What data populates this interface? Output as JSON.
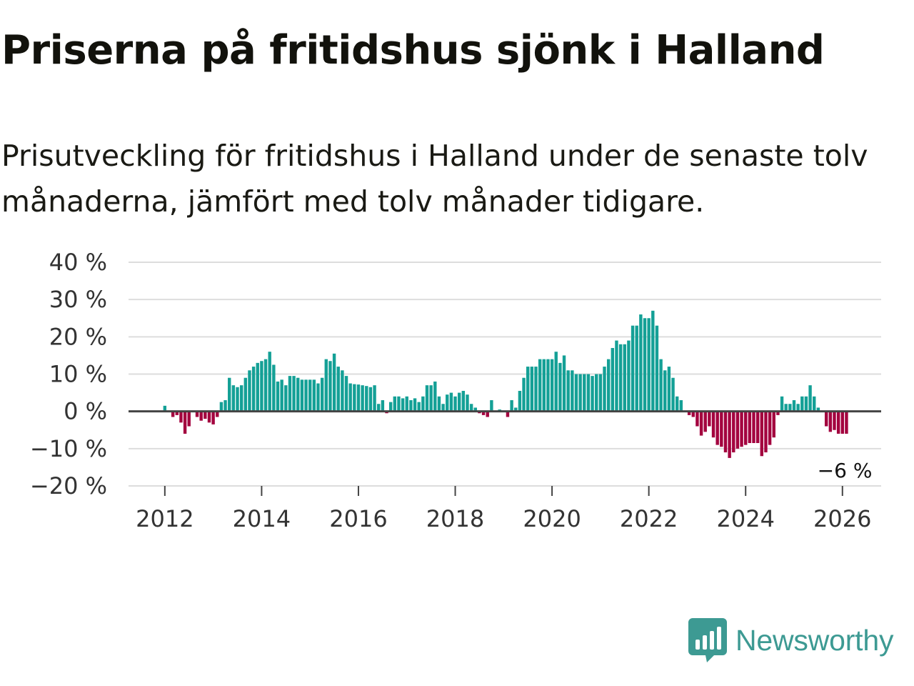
{
  "title": "Priserna på fritidshus sjönk i Halland",
  "subtitle": "Prisutveckling för fritidshus i Halland under de senaste tolv månaderna, jämfört med tolv månader tidigare.",
  "brand": {
    "name": "Newsworthy",
    "icon": "newsworthy-logo-icon",
    "color": "#3d9a93"
  },
  "colors": {
    "positive": "#14a096",
    "negative": "#a3003e",
    "grid": "#dddddd",
    "zero_line": "#444444"
  },
  "chart_data": {
    "type": "bar",
    "y_tick_labels": [
      "40 %",
      "30 %",
      "20 %",
      "10 %",
      "0 %",
      "−10 %",
      "−20 %"
    ],
    "y_ticks": [
      40,
      30,
      20,
      10,
      0,
      -10,
      -20
    ],
    "ylim": [
      -20,
      40
    ],
    "x_tick_labels": [
      "2012",
      "2014",
      "2016",
      "2018",
      "2020",
      "2022",
      "2024",
      "2026"
    ],
    "x_ticks": [
      2012,
      2014,
      2016,
      2018,
      2020,
      2022,
      2024,
      2026
    ],
    "xlim": [
      2011.25,
      2026.8
    ],
    "end_label": "−6 %",
    "grid": true,
    "series": [
      {
        "start": "2012-01",
        "frequency": "monthly",
        "values": [
          1.5,
          0,
          -1.5,
          -1,
          -3,
          -6,
          -4,
          0,
          -1.5,
          -2.5,
          -2,
          -3,
          -3.5,
          -1.5,
          2.5,
          3,
          9,
          7,
          6.5,
          7,
          9,
          11,
          12,
          13,
          13.5,
          14,
          16,
          12.5,
          8,
          8.5,
          7,
          9.5,
          9.5,
          9,
          8.5,
          8.5,
          8.5,
          8.5,
          7.5,
          9,
          14,
          13.5,
          15.5,
          12,
          11,
          9.5,
          7.5,
          7.3,
          7.2,
          7,
          6.8,
          6.5,
          7,
          2,
          3,
          -0.5,
          2.5,
          4,
          4,
          3.5,
          4,
          3,
          3.5,
          2.5,
          4,
          7,
          7,
          8,
          4,
          2,
          4.5,
          5,
          4,
          5,
          5.5,
          4.5,
          2,
          1,
          -0.5,
          -1,
          -1.5,
          3,
          0,
          0.5,
          0,
          -1.5,
          3,
          1,
          5.5,
          9,
          12,
          12,
          12,
          14,
          14,
          14,
          14,
          16,
          13,
          15,
          11,
          11,
          10,
          10,
          10,
          10,
          9.5,
          10,
          10,
          12,
          14,
          17,
          19,
          18,
          18,
          19,
          23,
          23,
          26,
          25,
          25,
          27,
          23,
          14,
          11,
          12,
          9,
          4,
          3,
          0,
          -1,
          -1.5,
          -4,
          -6.5,
          -5.5,
          -4,
          -7,
          -9,
          -9.5,
          -11,
          -12.5,
          -11,
          -10,
          -9.5,
          -9,
          -8.5,
          -8.5,
          -8.5,
          -12,
          -11,
          -9,
          -7,
          -1,
          4,
          2,
          2,
          3,
          2,
          4,
          4,
          7,
          4,
          1,
          0,
          -4,
          -5.5,
          -5,
          -6,
          -6,
          -6
        ]
      }
    ]
  }
}
